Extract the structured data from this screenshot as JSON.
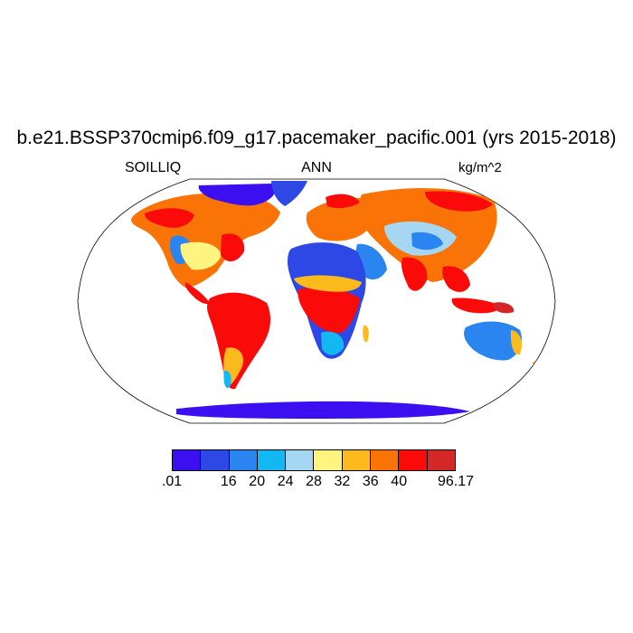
{
  "title": "b.e21.BSSP370cmip6.f09_g17.pacemaker_pacific.001 (yrs 2015-2018)",
  "left_label": "SOILLIQ",
  "center_label": "ANN",
  "right_label": "kg/m^2",
  "projection": "Robinson",
  "colorbar": {
    "colors": [
      "#3b0ff0",
      "#2e48e6",
      "#2a85f0",
      "#13b8f2",
      "#a6d7f2",
      "#fff480",
      "#fdba1c",
      "#fa7306",
      "#fb0a0a",
      "#d42828"
    ],
    "tick_labels": [
      ".01",
      "16",
      "20",
      "24",
      "28",
      "32",
      "36",
      "40",
      "96.17"
    ]
  },
  "chart_data": {
    "type": "heatmap",
    "title": "b.e21.BSSP370cmip6.f09_g17.pacemaker_pacific.001 (yrs 2015-2018)",
    "variable": "SOILLIQ",
    "season": "ANN",
    "units": "kg/m^2",
    "levels": [
      0.01,
      16,
      20,
      24,
      28,
      32,
      36,
      40,
      96.17
    ]
  }
}
